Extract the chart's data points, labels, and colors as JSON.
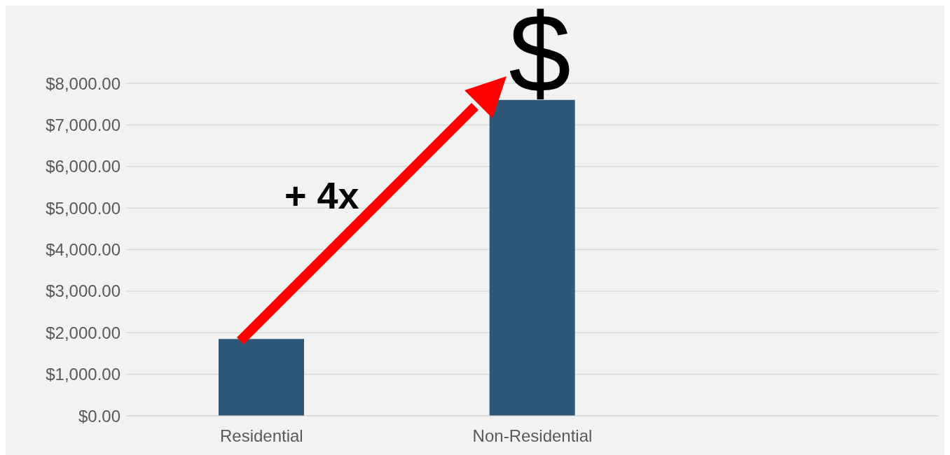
{
  "chart_data": {
    "type": "bar",
    "categories": [
      "Residential",
      "Non-Residential",
      null
    ],
    "values": [
      1850,
      7600,
      null
    ],
    "color": "#2e5778",
    "ylim": [
      0,
      8000
    ],
    "yticks": [
      {
        "value": 0,
        "label": "$0.00"
      },
      {
        "value": 1000,
        "label": "$1,000.00"
      },
      {
        "value": 2000,
        "label": "$2,000.00"
      },
      {
        "value": 3000,
        "label": "$3,000.00"
      },
      {
        "value": 4000,
        "label": "$4,000.00"
      },
      {
        "value": 5000,
        "label": "$5,000.00"
      },
      {
        "value": 6000,
        "label": "$6,000.00"
      },
      {
        "value": 7000,
        "label": "$7,000.00"
      },
      {
        "value": 8000,
        "label": "$8,000.00"
      }
    ],
    "grid": "y",
    "annotations": [
      "+ 4x",
      "$"
    ]
  }
}
